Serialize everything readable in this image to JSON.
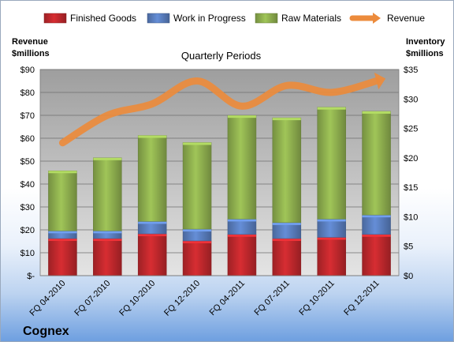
{
  "chart_data": {
    "type": "bar",
    "stacked": true,
    "subtitle": "Quarterly Periods",
    "company": "Cognex",
    "categories": [
      "FQ 04-2010",
      "FQ 07-2010",
      "FQ 10-2010",
      "FQ 12-2010",
      "FQ 04-2011",
      "FQ 07-2011",
      "FQ 10-2011",
      "FQ 12-2011"
    ],
    "series": [
      {
        "name": "Finished Goods",
        "axis": "right",
        "color": "#c0282d",
        "values": [
          6.3,
          6.3,
          7.1,
          5.9,
          7.0,
          6.3,
          6.5,
          7.0
        ]
      },
      {
        "name": "Work in Progress",
        "axis": "right",
        "color": "#5a7fc0",
        "values": [
          1.3,
          1.3,
          2.1,
          2.0,
          2.6,
          2.7,
          3.1,
          3.3
        ]
      },
      {
        "name": "Raw Materials",
        "axis": "right",
        "color": "#8fb04f",
        "values": [
          10.2,
          12.4,
          14.6,
          14.7,
          17.6,
          17.8,
          19.0,
          17.6
        ]
      },
      {
        "name": "Revenue",
        "axis": "left",
        "type": "line",
        "color": "#ec8b3c",
        "values": [
          58,
          70,
          75,
          85,
          74,
          83,
          80,
          85
        ]
      }
    ],
    "left_axis": {
      "title_line1": "Revenue",
      "title_line2": "$millions",
      "ylim": [
        0,
        90
      ],
      "ticks": [
        "$-",
        "$10",
        "$20",
        "$30",
        "$40",
        "$50",
        "$60",
        "$70",
        "$80",
        "$90"
      ]
    },
    "right_axis": {
      "title_line1": "Inventory",
      "title_line2": "$millions",
      "ylim": [
        0,
        35
      ],
      "ticks": [
        "$0",
        "$5",
        "$10",
        "$15",
        "$20",
        "$25",
        "$30",
        "$35"
      ]
    },
    "grid": true,
    "legend_position": "top"
  }
}
